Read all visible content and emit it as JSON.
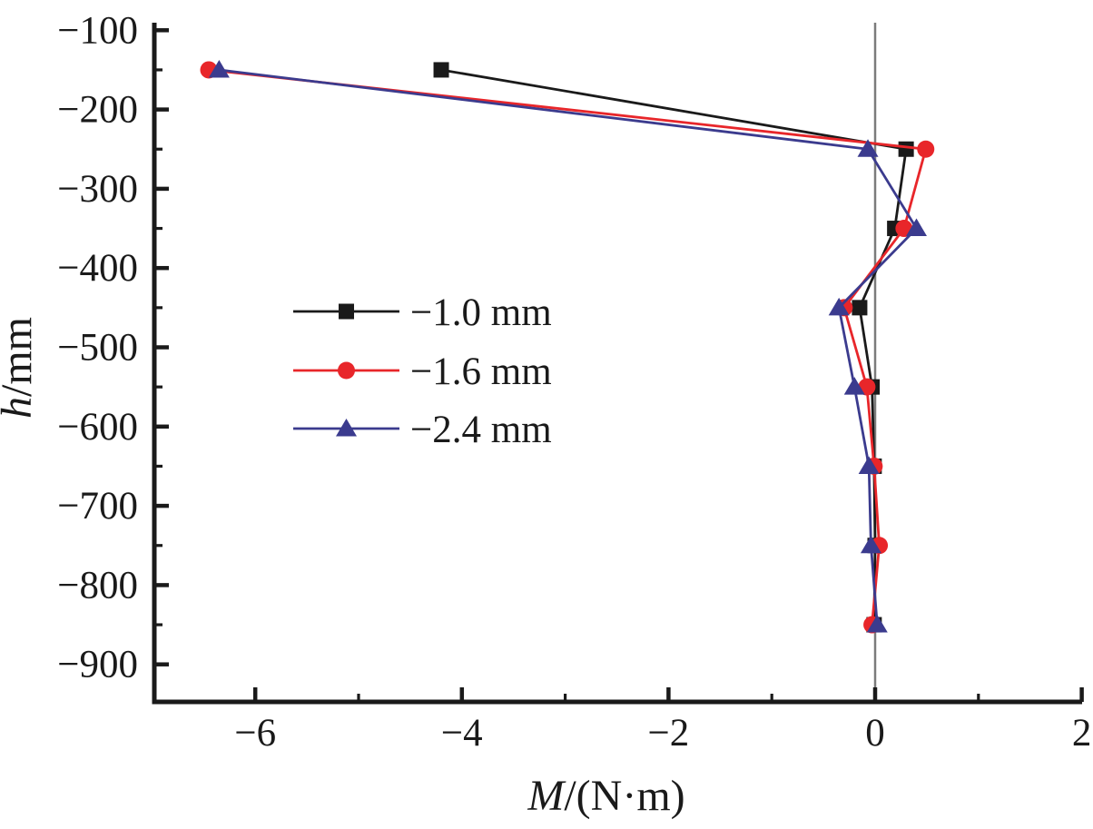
{
  "figure": {
    "background": "#ffffff",
    "description": "Bending moment M versus depth h for three displacement cases"
  },
  "chart_data": {
    "type": "line",
    "title": "",
    "xlabel": "M/(N·m)",
    "xlabel_var": "M",
    "xlabel_rest": "/(N·m)",
    "ylabel": "h/mm",
    "ylabel_var": "h",
    "ylabel_rest": "/mm",
    "x_range": [
      -7.0,
      2.0
    ],
    "y_range": [
      -947,
      -94
    ],
    "x_ticks": [
      -6,
      -4,
      -2,
      0,
      2
    ],
    "x_minor_ticks": [
      -5,
      -3,
      -1,
      1
    ],
    "y_ticks": [
      -100,
      -200,
      -300,
      -400,
      -500,
      -600,
      -700,
      -800,
      -900
    ],
    "y_minor_ticks": [
      -150,
      -250,
      -350,
      -450,
      -550,
      -650,
      -750,
      -850
    ],
    "grid": false,
    "zero_reference_line_x": 0,
    "axis_color": "#1a1a1a",
    "zero_line_color": "#7b7b7b",
    "legend_position": "inside-upper-left",
    "series": [
      {
        "name": "−1.0 mm",
        "color": "#1a1a1a",
        "marker": "square",
        "points": [
          [
            -4.2,
            -150
          ],
          [
            0.3,
            -250
          ],
          [
            0.19,
            -350
          ],
          [
            -0.15,
            -450
          ],
          [
            -0.03,
            -550
          ],
          [
            -0.01,
            -650
          ],
          [
            0.0,
            -750
          ],
          [
            -0.01,
            -850
          ]
        ]
      },
      {
        "name": "−1.6 mm",
        "color": "#e8262a",
        "marker": "circle",
        "points": [
          [
            -6.45,
            -150
          ],
          [
            0.49,
            -250
          ],
          [
            0.28,
            -350
          ],
          [
            -0.3,
            -450
          ],
          [
            -0.08,
            -550
          ],
          [
            -0.01,
            -650
          ],
          [
            0.04,
            -750
          ],
          [
            -0.03,
            -850
          ]
        ]
      },
      {
        "name": "−2.4 mm",
        "color": "#3b3b8e",
        "marker": "triangle",
        "points": [
          [
            -6.35,
            -150
          ],
          [
            -0.07,
            -250
          ],
          [
            0.4,
            -350
          ],
          [
            -0.35,
            -450
          ],
          [
            -0.2,
            -550
          ],
          [
            -0.06,
            -650
          ],
          [
            -0.04,
            -750
          ],
          [
            0.02,
            -850
          ]
        ]
      }
    ]
  }
}
